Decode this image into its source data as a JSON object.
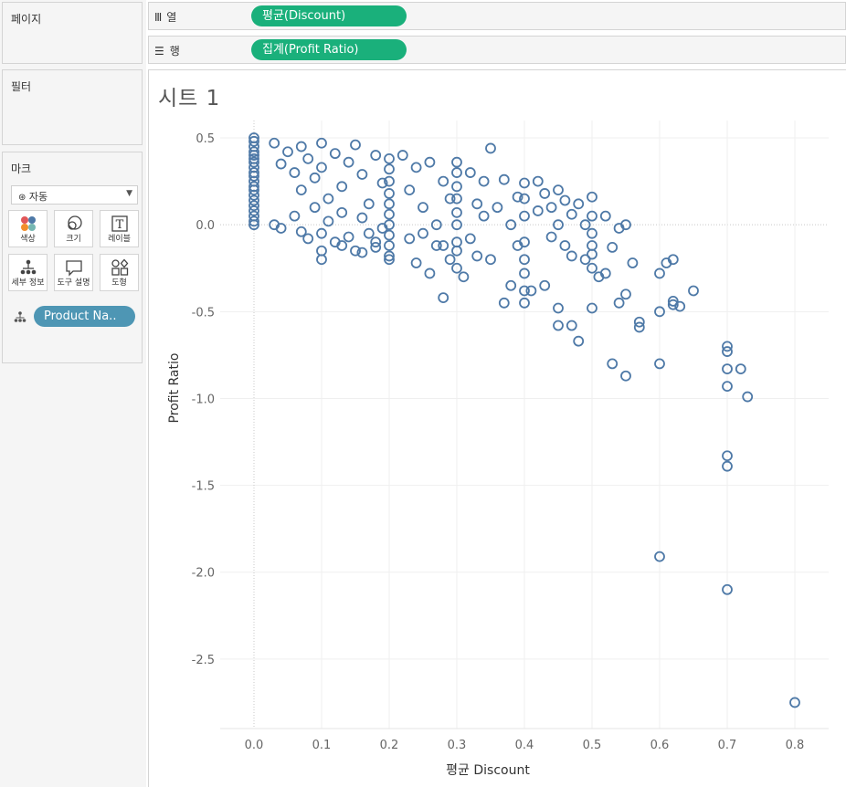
{
  "left_panel": {
    "pages_title": "페이지",
    "filters_title": "필터",
    "marks": {
      "title": "마크",
      "mark_type": "자동",
      "buttons": [
        {
          "label": "색상",
          "icon": "color-dots-icon"
        },
        {
          "label": "크기",
          "icon": "size-icon"
        },
        {
          "label": "레이블",
          "icon": "label-T-icon"
        },
        {
          "label": "세부 정보",
          "icon": "detail-icon"
        },
        {
          "label": "도구 설명",
          "icon": "tooltip-icon"
        },
        {
          "label": "도형",
          "icon": "shape-icon"
        }
      ],
      "detail_field": "Product Na.."
    }
  },
  "shelves": {
    "columns": {
      "label": "열",
      "pill": "평균(Discount)"
    },
    "rows": {
      "label": "행",
      "pill": "집계(Profit Ratio)"
    }
  },
  "sheet": {
    "title": "시트 1"
  },
  "colors": {
    "accent_pill": "#1ab07b",
    "detail_pill": "#4e96b4",
    "mark": "#4e79a7"
  },
  "chart_data": {
    "type": "scatter",
    "xlabel": "평균 Discount",
    "ylabel": "Profit Ratio",
    "xlim": [
      -0.05,
      0.85
    ],
    "ylim": [
      -2.9,
      0.6
    ],
    "x_ticks": [
      "0.0",
      "0.1",
      "0.2",
      "0.3",
      "0.4",
      "0.5",
      "0.6",
      "0.7",
      "0.8"
    ],
    "y_ticks": [
      "0.5",
      "0.0",
      "-0.5",
      "-1.0",
      "-1.5",
      "-2.0",
      "-2.5"
    ],
    "grid": true,
    "marker": "hollow-circle",
    "points": [
      [
        0,
        0.5
      ],
      [
        0,
        0.48
      ],
      [
        0,
        0.45
      ],
      [
        0,
        0.42
      ],
      [
        0,
        0.4
      ],
      [
        0,
        0.38
      ],
      [
        0,
        0.36
      ],
      [
        0,
        0.33
      ],
      [
        0,
        0.3
      ],
      [
        0,
        0.28
      ],
      [
        0,
        0.25
      ],
      [
        0,
        0.22
      ],
      [
        0,
        0.2
      ],
      [
        0,
        0.17
      ],
      [
        0,
        0.14
      ],
      [
        0,
        0.11
      ],
      [
        0,
        0.08
      ],
      [
        0,
        0.05
      ],
      [
        0,
        0.02
      ],
      [
        0,
        0.0
      ],
      [
        0.03,
        0.47
      ],
      [
        0.04,
        0.35
      ],
      [
        0.05,
        0.42
      ],
      [
        0.06,
        0.3
      ],
      [
        0.07,
        0.45
      ],
      [
        0.07,
        0.2
      ],
      [
        0.08,
        0.38
      ],
      [
        0.09,
        0.27
      ],
      [
        0.1,
        0.47
      ],
      [
        0.1,
        0.33
      ],
      [
        0.11,
        0.15
      ],
      [
        0.12,
        0.41
      ],
      [
        0.13,
        0.22
      ],
      [
        0.14,
        0.36
      ],
      [
        0.15,
        0.46
      ],
      [
        0.16,
        0.29
      ],
      [
        0.17,
        0.12
      ],
      [
        0.18,
        0.4
      ],
      [
        0.19,
        0.24
      ],
      [
        0.03,
        0.0
      ],
      [
        0.04,
        -0.02
      ],
      [
        0.06,
        0.05
      ],
      [
        0.07,
        -0.04
      ],
      [
        0.08,
        -0.08
      ],
      [
        0.09,
        0.1
      ],
      [
        0.1,
        -0.05
      ],
      [
        0.1,
        -0.15
      ],
      [
        0.11,
        0.02
      ],
      [
        0.12,
        -0.1
      ],
      [
        0.13,
        0.07
      ],
      [
        0.14,
        -0.07
      ],
      [
        0.15,
        -0.15
      ],
      [
        0.16,
        0.04
      ],
      [
        0.17,
        -0.05
      ],
      [
        0.18,
        -0.13
      ],
      [
        0.19,
        -0.02
      ],
      [
        0.2,
        -0.18
      ],
      [
        0.1,
        -0.2
      ],
      [
        0.13,
        -0.12
      ],
      [
        0.16,
        -0.16
      ],
      [
        0.18,
        -0.1
      ],
      [
        0.2,
        -0.2
      ],
      [
        0.2,
        0.38
      ],
      [
        0.2,
        0.32
      ],
      [
        0.2,
        0.25
      ],
      [
        0.2,
        0.18
      ],
      [
        0.2,
        0.12
      ],
      [
        0.2,
        0.06
      ],
      [
        0.2,
        0.0
      ],
      [
        0.2,
        -0.06
      ],
      [
        0.2,
        -0.12
      ],
      [
        0.22,
        0.4
      ],
      [
        0.23,
        0.2
      ],
      [
        0.24,
        0.33
      ],
      [
        0.25,
        0.1
      ],
      [
        0.26,
        0.36
      ],
      [
        0.27,
        0.0
      ],
      [
        0.28,
        0.25
      ],
      [
        0.28,
        -0.12
      ],
      [
        0.29,
        0.15
      ],
      [
        0.23,
        -0.08
      ],
      [
        0.24,
        -0.22
      ],
      [
        0.25,
        -0.05
      ],
      [
        0.26,
        -0.28
      ],
      [
        0.27,
        -0.12
      ],
      [
        0.29,
        -0.2
      ],
      [
        0.3,
        0.36
      ],
      [
        0.3,
        0.3
      ],
      [
        0.3,
        0.22
      ],
      [
        0.3,
        0.15
      ],
      [
        0.3,
        0.07
      ],
      [
        0.3,
        0.0
      ],
      [
        0.3,
        -0.1
      ],
      [
        0.3,
        -0.15
      ],
      [
        0.3,
        -0.25
      ],
      [
        0.28,
        -0.42
      ],
      [
        0.31,
        -0.3
      ],
      [
        0.32,
        0.3
      ],
      [
        0.32,
        -0.08
      ],
      [
        0.33,
        0.12
      ],
      [
        0.33,
        -0.18
      ],
      [
        0.34,
        0.25
      ],
      [
        0.34,
        0.05
      ],
      [
        0.35,
        0.44
      ],
      [
        0.35,
        -0.2
      ],
      [
        0.36,
        0.1
      ],
      [
        0.37,
        0.26
      ],
      [
        0.37,
        -0.45
      ],
      [
        0.38,
        -0.35
      ],
      [
        0.38,
        0.0
      ],
      [
        0.39,
        0.16
      ],
      [
        0.39,
        -0.12
      ],
      [
        0.4,
        0.24
      ],
      [
        0.4,
        0.15
      ],
      [
        0.4,
        0.05
      ],
      [
        0.4,
        -0.1
      ],
      [
        0.4,
        -0.2
      ],
      [
        0.4,
        -0.28
      ],
      [
        0.4,
        -0.38
      ],
      [
        0.4,
        -0.45
      ],
      [
        0.41,
        -0.38
      ],
      [
        0.42,
        0.25
      ],
      [
        0.42,
        0.08
      ],
      [
        0.43,
        0.18
      ],
      [
        0.43,
        -0.35
      ],
      [
        0.44,
        0.1
      ],
      [
        0.44,
        -0.07
      ],
      [
        0.45,
        0.2
      ],
      [
        0.45,
        0.0
      ],
      [
        0.45,
        -0.48
      ],
      [
        0.45,
        -0.58
      ],
      [
        0.46,
        0.14
      ],
      [
        0.46,
        -0.12
      ],
      [
        0.47,
        0.06
      ],
      [
        0.47,
        -0.18
      ],
      [
        0.47,
        -0.58
      ],
      [
        0.48,
        0.12
      ],
      [
        0.48,
        -0.67
      ],
      [
        0.49,
        0.0
      ],
      [
        0.49,
        -0.2
      ],
      [
        0.5,
        0.16
      ],
      [
        0.5,
        0.05
      ],
      [
        0.5,
        -0.05
      ],
      [
        0.5,
        -0.12
      ],
      [
        0.5,
        -0.17
      ],
      [
        0.5,
        -0.25
      ],
      [
        0.5,
        -0.48
      ],
      [
        0.51,
        -0.3
      ],
      [
        0.52,
        0.05
      ],
      [
        0.52,
        -0.28
      ],
      [
        0.53,
        -0.13
      ],
      [
        0.53,
        -0.8
      ],
      [
        0.54,
        -0.45
      ],
      [
        0.54,
        -0.02
      ],
      [
        0.55,
        -0.4
      ],
      [
        0.55,
        -0.87
      ],
      [
        0.55,
        0.0
      ],
      [
        0.56,
        -0.22
      ],
      [
        0.57,
        -0.56
      ],
      [
        0.57,
        -0.59
      ],
      [
        0.6,
        -0.28
      ],
      [
        0.6,
        -0.5
      ],
      [
        0.6,
        -0.8
      ],
      [
        0.6,
        -1.91
      ],
      [
        0.61,
        -0.22
      ],
      [
        0.62,
        -0.2
      ],
      [
        0.62,
        -0.44
      ],
      [
        0.62,
        -0.46
      ],
      [
        0.63,
        -0.47
      ],
      [
        0.65,
        -0.38
      ],
      [
        0.7,
        -0.7
      ],
      [
        0.7,
        -0.73
      ],
      [
        0.7,
        -0.83
      ],
      [
        0.7,
        -0.93
      ],
      [
        0.7,
        -1.33
      ],
      [
        0.7,
        -1.39
      ],
      [
        0.7,
        -2.1
      ],
      [
        0.72,
        -0.83
      ],
      [
        0.73,
        -0.99
      ],
      [
        0.8,
        -2.75
      ]
    ]
  }
}
